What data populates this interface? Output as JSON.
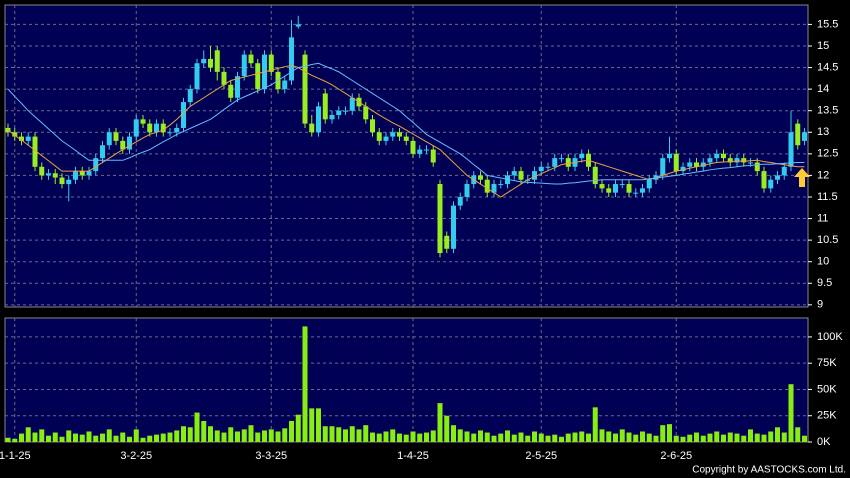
{
  "chart_data": [
    {
      "type": "candlestick",
      "up_color": "#33ccee",
      "down_color": "#99ee22",
      "grid": true,
      "ylim": [
        8.95,
        15.95
      ],
      "yticks": [
        15.5,
        15,
        14.5,
        14,
        13.5,
        13,
        12.5,
        12,
        11.5,
        11,
        10.5,
        10,
        9.5,
        9
      ],
      "xticks": [
        {
          "value": 1,
          "label": "1-1-25"
        },
        {
          "value": 19,
          "label": "3-2-25"
        },
        {
          "value": 39,
          "label": "3-3-25"
        },
        {
          "value": 60,
          "label": "1-4-25"
        },
        {
          "value": 79,
          "label": "2-5-25"
        },
        {
          "value": 99,
          "label": "2-6-25"
        }
      ],
      "open": [
        13.1,
        13.0,
        12.9,
        12.8,
        12.9,
        12.2,
        12.0,
        12.05,
        11.95,
        11.8,
        11.9,
        12.1,
        12.0,
        12.1,
        12.4,
        12.7,
        13.0,
        12.8,
        12.6,
        12.9,
        13.3,
        13.2,
        13.0,
        13.2,
        13.0,
        13.0,
        13.1,
        13.7,
        14.0,
        14.6,
        14.7,
        14.9,
        14.4,
        14.1,
        13.8,
        14.3,
        14.8,
        14.6,
        14.0,
        14.8,
        14.4,
        14.0,
        14.2,
        15.45,
        14.8,
        13.2,
        13.0,
        13.9,
        13.3,
        13.4,
        13.5,
        13.5,
        13.8,
        13.6,
        13.3,
        13.0,
        12.8,
        12.9,
        13.0,
        12.9,
        12.8,
        12.5,
        12.6,
        12.6,
        11.8,
        10.6,
        10.3,
        11.3,
        11.5,
        11.8,
        12.0,
        11.9,
        11.6,
        11.8,
        11.8,
        12.0,
        12.1,
        11.9,
        11.9,
        12.1,
        12.2,
        12.2,
        12.4,
        12.4,
        12.2,
        12.4,
        12.5,
        12.2,
        11.8,
        11.7,
        11.6,
        11.8,
        11.8,
        11.6,
        11.6,
        11.7,
        11.9,
        12.0,
        12.4,
        12.5,
        12.1,
        12.2,
        12.3,
        12.2,
        12.3,
        12.4,
        12.5,
        12.4,
        12.3,
        12.4,
        12.3,
        12.3,
        12.1,
        11.7,
        11.9,
        12.0,
        12.2,
        13.2,
        12.8
      ],
      "high": [
        13.2,
        13.1,
        13.0,
        13.0,
        13.0,
        12.3,
        12.15,
        12.15,
        12.05,
        12.0,
        12.2,
        12.2,
        12.2,
        12.5,
        12.8,
        13.1,
        13.1,
        12.9,
        13.0,
        13.4,
        13.4,
        13.3,
        13.3,
        13.3,
        13.1,
        13.2,
        13.8,
        14.1,
        14.7,
        14.9,
        15.0,
        15.0,
        14.5,
        14.2,
        14.4,
        14.9,
        14.9,
        14.7,
        14.9,
        14.9,
        14.5,
        14.3,
        15.6,
        15.7,
        14.9,
        13.4,
        13.7,
        14.0,
        13.5,
        13.6,
        13.6,
        13.9,
        13.9,
        13.7,
        13.4,
        13.1,
        13.0,
        13.1,
        13.1,
        13.0,
        12.9,
        12.7,
        12.7,
        12.7,
        11.9,
        10.7,
        11.4,
        11.6,
        11.9,
        12.1,
        12.1,
        12.0,
        11.9,
        11.9,
        12.1,
        12.2,
        12.2,
        12.0,
        12.2,
        12.3,
        12.3,
        12.5,
        12.5,
        12.5,
        12.5,
        12.6,
        12.6,
        12.3,
        11.9,
        11.8,
        11.9,
        11.9,
        11.9,
        11.7,
        11.8,
        12.0,
        12.1,
        12.5,
        12.9,
        12.6,
        12.3,
        12.4,
        12.4,
        12.4,
        12.5,
        12.6,
        12.6,
        12.5,
        12.5,
        12.5,
        12.4,
        12.4,
        12.2,
        12.0,
        12.1,
        12.3,
        13.5,
        13.3,
        13.1
      ],
      "low": [
        12.9,
        12.8,
        12.7,
        12.7,
        12.1,
        11.9,
        11.9,
        11.8,
        11.7,
        11.4,
        11.8,
        11.9,
        11.9,
        12.0,
        12.3,
        12.6,
        12.7,
        12.5,
        12.5,
        12.8,
        13.1,
        12.9,
        12.9,
        12.9,
        12.9,
        12.9,
        13.0,
        13.6,
        13.9,
        14.5,
        14.4,
        14.2,
        14.0,
        13.7,
        13.7,
        14.2,
        14.5,
        13.9,
        13.9,
        14.3,
        13.9,
        13.9,
        14.1,
        15.4,
        13.1,
        12.9,
        12.9,
        13.2,
        13.2,
        13.3,
        13.4,
        13.4,
        13.5,
        13.2,
        12.9,
        12.7,
        12.7,
        12.8,
        12.8,
        12.7,
        12.4,
        12.4,
        12.5,
        12.2,
        10.1,
        10.2,
        10.2,
        11.2,
        11.4,
        11.7,
        11.8,
        11.5,
        11.5,
        11.7,
        11.7,
        11.9,
        11.8,
        11.8,
        11.8,
        12.0,
        12.1,
        12.1,
        12.3,
        12.1,
        12.1,
        12.3,
        12.1,
        11.7,
        11.6,
        11.5,
        11.5,
        11.7,
        11.5,
        11.5,
        11.5,
        11.6,
        11.8,
        11.9,
        12.3,
        12.0,
        12.0,
        12.1,
        12.1,
        12.1,
        12.2,
        12.3,
        12.3,
        12.2,
        12.2,
        12.2,
        12.2,
        12.0,
        11.6,
        11.6,
        11.8,
        11.9,
        12.1,
        12.6,
        12.7
      ],
      "close": [
        13.0,
        12.9,
        12.8,
        12.9,
        12.2,
        12.0,
        12.05,
        11.95,
        11.8,
        11.9,
        12.1,
        12.0,
        12.1,
        12.4,
        12.7,
        13.0,
        12.8,
        12.6,
        12.9,
        13.3,
        13.2,
        13.0,
        13.2,
        13.0,
        13.0,
        13.1,
        13.7,
        14.0,
        14.6,
        14.7,
        14.5,
        14.4,
        14.1,
        13.8,
        14.3,
        14.8,
        14.6,
        14.0,
        14.8,
        14.4,
        14.0,
        14.2,
        15.2,
        15.5,
        13.2,
        13.0,
        13.6,
        13.3,
        13.4,
        13.5,
        13.5,
        13.8,
        13.6,
        13.3,
        13.0,
        12.8,
        12.9,
        13.0,
        12.9,
        12.8,
        12.5,
        12.6,
        12.6,
        12.3,
        10.2,
        10.3,
        11.3,
        11.5,
        11.8,
        12.0,
        11.9,
        11.6,
        11.8,
        11.8,
        12.0,
        12.1,
        11.9,
        11.9,
        12.1,
        12.2,
        12.2,
        12.4,
        12.4,
        12.2,
        12.4,
        12.5,
        12.2,
        11.8,
        11.7,
        11.6,
        11.8,
        11.8,
        11.6,
        11.6,
        11.7,
        11.9,
        12.0,
        12.4,
        12.5,
        12.1,
        12.2,
        12.3,
        12.2,
        12.3,
        12.4,
        12.5,
        12.4,
        12.3,
        12.4,
        12.3,
        12.3,
        12.1,
        11.7,
        11.9,
        12.0,
        12.2,
        13.0,
        12.7,
        13.0
      ],
      "series": [
        {
          "color": "#f0a040",
          "values": [
            13.05,
            12.93,
            12.82,
            12.7,
            12.58,
            12.46,
            12.34,
            12.22,
            12.1,
            12.1,
            12.1,
            12.1,
            12.1,
            12.2,
            12.3,
            12.4,
            12.5,
            12.6,
            12.69,
            12.78,
            12.87,
            12.95,
            13.0,
            13.05,
            13.17,
            13.3,
            13.45,
            13.6,
            13.7,
            13.8,
            13.9,
            14.0,
            14.1,
            14.2,
            14.24,
            14.28,
            14.32,
            14.36,
            14.4,
            14.44,
            14.48,
            14.52,
            14.55,
            14.5,
            14.4,
            14.32,
            14.25,
            14.18,
            14.1,
            14.0,
            13.9,
            13.8,
            13.7,
            13.6,
            13.5,
            13.4,
            13.31,
            13.22,
            13.14,
            13.05,
            12.96,
            12.87,
            12.78,
            12.69,
            12.6,
            12.45,
            12.3,
            12.15,
            12.0,
            11.9,
            11.8,
            11.7,
            11.6,
            11.5,
            11.6,
            11.7,
            11.8,
            11.9,
            11.97,
            12.04,
            12.11,
            12.18,
            12.25,
            12.28,
            12.3,
            12.33,
            12.35,
            12.3,
            12.25,
            12.2,
            12.15,
            12.1,
            12.05,
            12.0,
            11.95,
            11.9,
            11.95,
            12.0,
            12.05,
            12.1,
            12.13,
            12.17,
            12.2,
            12.23,
            12.27,
            12.3,
            12.31,
            12.32,
            12.33,
            12.33,
            12.34,
            12.35,
            12.32,
            12.3,
            12.27,
            12.25,
            12.22,
            12.2,
            12.2
          ]
        },
        {
          "color": "#66bbff",
          "values": [
            14.0,
            13.83,
            13.67,
            13.5,
            13.36,
            13.22,
            13.08,
            12.94,
            12.8,
            12.69,
            12.58,
            12.46,
            12.35,
            12.35,
            12.35,
            12.35,
            12.35,
            12.35,
            12.41,
            12.48,
            12.54,
            12.6,
            12.69,
            12.78,
            12.86,
            12.95,
            13.02,
            13.09,
            13.16,
            13.23,
            13.3,
            13.41,
            13.53,
            13.64,
            13.75,
            13.82,
            13.89,
            13.96,
            14.03,
            14.1,
            14.2,
            14.3,
            14.4,
            14.5,
            14.53,
            14.57,
            14.6,
            14.53,
            14.47,
            14.4,
            14.3,
            14.2,
            14.1,
            14.0,
            13.9,
            13.8,
            13.7,
            13.6,
            13.5,
            13.36,
            13.23,
            13.09,
            12.95,
            12.86,
            12.77,
            12.68,
            12.59,
            12.5,
            12.38,
            12.25,
            12.13,
            12.0,
            11.97,
            11.94,
            11.91,
            11.88,
            11.85,
            11.84,
            11.83,
            11.82,
            11.81,
            11.8,
            11.8,
            11.82,
            11.83,
            11.85,
            11.87,
            11.88,
            11.9,
            11.9,
            11.9,
            11.9,
            11.9,
            11.9,
            11.9,
            11.92,
            11.94,
            11.96,
            11.98,
            12.0,
            12.03,
            12.05,
            12.08,
            12.1,
            12.13,
            12.15,
            12.17,
            12.18,
            12.2,
            12.22,
            12.23,
            12.25,
            12.26,
            12.26,
            12.27,
            12.28,
            12.29,
            12.3,
            12.3
          ]
        }
      ]
    },
    {
      "type": "bar",
      "color": "#88ee11",
      "grid": true,
      "ylim": [
        0,
        118000
      ],
      "yticks": [
        {
          "value": 100000,
          "label": "100K"
        },
        {
          "value": 75000,
          "label": "75K"
        },
        {
          "value": 50000,
          "label": "50K"
        },
        {
          "value": 25000,
          "label": "25K"
        },
        {
          "value": 0,
          "label": "0K"
        }
      ],
      "values": [
        4000,
        3000,
        8000,
        14000,
        9000,
        12000,
        6000,
        9000,
        5000,
        11000,
        8000,
        7000,
        10000,
        6000,
        8000,
        12000,
        6000,
        9000,
        5000,
        12000,
        4000,
        6000,
        7000,
        8000,
        9000,
        11000,
        15000,
        14000,
        28000,
        20000,
        15000,
        11000,
        9000,
        14000,
        10000,
        12000,
        16000,
        9000,
        11000,
        12000,
        10000,
        13000,
        20000,
        26000,
        110000,
        32000,
        32000,
        15000,
        15000,
        14000,
        12000,
        15000,
        12000,
        16000,
        9000,
        8000,
        10000,
        12000,
        8000,
        7000,
        10000,
        8000,
        9000,
        11000,
        37000,
        25000,
        16000,
        12000,
        10000,
        8000,
        11000,
        9000,
        6000,
        8000,
        11000,
        7000,
        9000,
        6000,
        10000,
        8000,
        6000,
        7000,
        5000,
        8000,
        9000,
        10000,
        8000,
        33000,
        12000,
        10000,
        8000,
        12000,
        9000,
        7000,
        10000,
        8000,
        6000,
        16000,
        17000,
        6000,
        5000,
        7000,
        9000,
        6000,
        8000,
        10000,
        7000,
        9000,
        8000,
        6000,
        12000,
        8000,
        7000,
        10000,
        14000,
        9000,
        55000,
        14000,
        6000
      ],
      "annotations": [
        "Copyright by AASTOCKS.com Ltd."
      ]
    }
  ]
}
